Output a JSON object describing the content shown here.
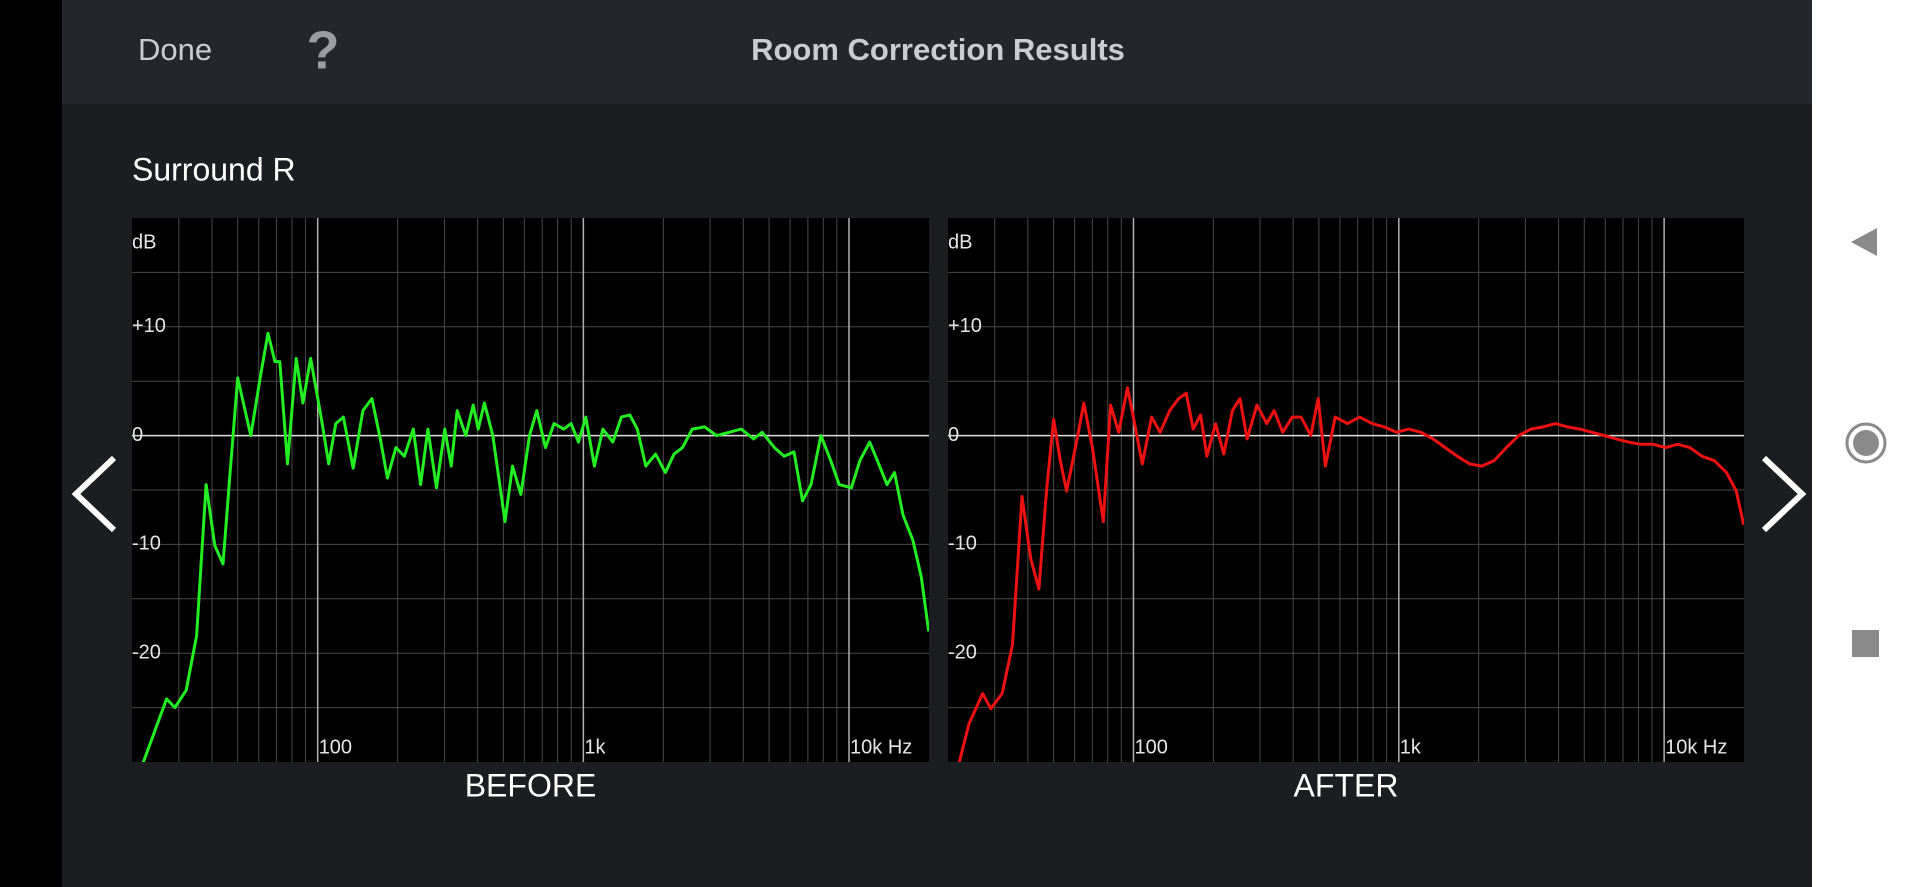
{
  "header": {
    "done": "Done",
    "help": "?",
    "title": "Room Correction Results"
  },
  "channel": "Surround R",
  "chart_data": [
    {
      "type": "line",
      "title": "BEFORE",
      "ylabel": "dB",
      "color": "#22ee22",
      "xscale": "log",
      "xlim": [
        20,
        20000
      ],
      "xticks": [
        100,
        {
          "value": 1000,
          "label": "1k"
        },
        {
          "value": 10000,
          "label": "10k Hz"
        }
      ],
      "xminor": [
        30,
        40,
        50,
        60,
        70,
        80,
        90,
        200,
        300,
        400,
        500,
        600,
        700,
        800,
        900,
        2000,
        3000,
        4000,
        5000,
        6000,
        7000,
        8000,
        9000
      ],
      "ylim": [
        -30,
        20
      ],
      "yticks": [
        {
          "value": 10,
          "label": "+10"
        },
        0,
        -10,
        -20
      ],
      "yminor": [
        -25,
        -15,
        -5,
        5,
        15
      ],
      "x": [
        22,
        27,
        29,
        32,
        35,
        38,
        41,
        44,
        47,
        50,
        56,
        61,
        65,
        69,
        72,
        77,
        83,
        88,
        94,
        103,
        110,
        117,
        125,
        136,
        148,
        160,
        172,
        183,
        197,
        212,
        229,
        244,
        260,
        280,
        301,
        318,
        335,
        361,
        385,
        402,
        424,
        456,
        507,
        541,
        582,
        627,
        668,
        720,
        775,
        844,
        899,
        959,
        1021,
        1100,
        1185,
        1291,
        1390,
        1496,
        1596,
        1718,
        1871,
        2037,
        2193,
        2362,
        2571,
        2858,
        3177,
        3532,
        3927,
        4375,
        4710,
        5236,
        5702,
        6209,
        6683,
        7194,
        7834,
        8531,
        9183,
        10207,
        10990,
        11967,
        13032,
        13899,
        14825,
        15962,
        17378,
        18707,
        19953
      ],
      "values": [
        -30.1,
        -24.2,
        -25.0,
        -23.4,
        -18.4,
        -4.5,
        -10.1,
        -11.8,
        -2.8,
        5.3,
        0,
        5.6,
        9.4,
        6.8,
        6.8,
        -2.6,
        7.1,
        3.0,
        7.1,
        1.7,
        -2.6,
        1.1,
        1.7,
        -3.0,
        2.3,
        3.4,
        -0.3,
        -3.9,
        -1.1,
        -1.9,
        0.6,
        -4.5,
        0.6,
        -4.8,
        0.6,
        -2.8,
        2.3,
        0,
        2.8,
        0.6,
        3.0,
        0,
        -7.9,
        -2.8,
        -5.4,
        0,
        2.3,
        -1.1,
        1.1,
        0.6,
        1.1,
        -0.6,
        1.7,
        -2.8,
        0.6,
        -0.6,
        1.7,
        1.9,
        0.6,
        -2.8,
        -1.7,
        -3.4,
        -1.7,
        -1.1,
        0.6,
        0.8,
        0,
        0.3,
        0.6,
        -0.3,
        0.3,
        -1.1,
        -1.9,
        -1.5,
        -6.0,
        -4.5,
        0,
        -2.3,
        -4.5,
        -4.8,
        -2.3,
        -0.6,
        -2.8,
        -4.5,
        -3.4,
        -7.3,
        -9.6,
        -13.0,
        -18.0
      ]
    },
    {
      "type": "line",
      "title": "AFTER",
      "ylabel": "dB",
      "color": "#ee1111",
      "xscale": "log",
      "xlim": [
        20,
        20000
      ],
      "xticks": [
        100,
        {
          "value": 1000,
          "label": "1k"
        },
        {
          "value": 10000,
          "label": "10k Hz"
        }
      ],
      "xminor": [
        30,
        40,
        50,
        60,
        70,
        80,
        90,
        200,
        300,
        400,
        500,
        600,
        700,
        800,
        900,
        2000,
        3000,
        4000,
        5000,
        6000,
        7000,
        8000,
        9000
      ],
      "ylim": [
        -30,
        20
      ],
      "yticks": [
        {
          "value": 10,
          "label": "+10"
        },
        0,
        -10,
        -20
      ],
      "yminor": [
        -25,
        -15,
        -5,
        5,
        15
      ],
      "x": [
        22,
        24,
        27,
        29,
        32,
        35,
        38,
        41,
        44,
        47,
        50,
        53,
        56,
        61,
        65,
        70,
        77,
        82,
        88,
        95,
        101,
        108,
        117,
        126,
        137,
        148,
        158,
        168,
        179,
        189,
        204,
        219,
        236,
        252,
        268,
        292,
        318,
        339,
        365,
        397,
        428,
        466,
        497,
        529,
        576,
        640,
        712,
        793,
        881,
        980,
        1089,
        1211,
        1346,
        1496,
        1663,
        1849,
        2056,
        2286,
        2545,
        2830,
        3148,
        3499,
        3890,
        4325,
        4809,
        5346,
        5943,
        6607,
        7345,
        8166,
        9099,
        10116,
        11246,
        12503,
        13900,
        15453,
        17180,
        18707,
        19953
      ],
      "values": [
        -30.1,
        -26.5,
        -23.7,
        -25.1,
        -23.7,
        -19.2,
        -5.6,
        -11.3,
        -14.1,
        -5.1,
        1.5,
        -2.3,
        -5.1,
        -0.6,
        3.0,
        -1.1,
        -7.9,
        2.8,
        0.3,
        4.4,
        1.1,
        -2.6,
        1.7,
        0.3,
        2.3,
        3.4,
        3.9,
        0.6,
        1.9,
        -1.9,
        1.1,
        -1.7,
        2.3,
        3.4,
        -0.3,
        2.8,
        1.1,
        2.3,
        0.3,
        1.7,
        1.7,
        0,
        3.4,
        -2.8,
        1.7,
        1.1,
        1.7,
        1.1,
        0.8,
        0.3,
        0.6,
        0.3,
        -0.3,
        -1.1,
        -1.9,
        -2.6,
        -2.8,
        -2.3,
        -1.1,
        0,
        0.6,
        0.8,
        1.1,
        0.8,
        0.6,
        0.3,
        0,
        -0.3,
        -0.6,
        -0.8,
        -0.8,
        -1.1,
        -0.8,
        -1.1,
        -1.9,
        -2.3,
        -3.4,
        -5.1,
        -8.2
      ]
    }
  ]
}
